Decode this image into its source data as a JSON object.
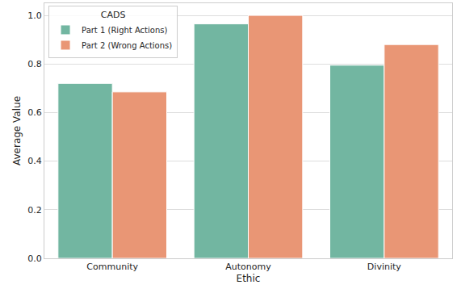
{
  "chart_data": {
    "type": "bar",
    "x_label": "Ethic",
    "y_label": "Average Value",
    "legend_title": "CADS",
    "categories": [
      "Community",
      "Autonomy",
      "Divinity"
    ],
    "series": [
      {
        "name": "Part 1 (Right Actions)",
        "color": "#72b6a1",
        "values": [
          0.72,
          0.965,
          0.795
        ]
      },
      {
        "name": "Part 2 (Wrong Actions)",
        "color": "#e99675",
        "values": [
          0.685,
          1.0,
          0.88
        ]
      }
    ],
    "ylim": [
      0,
      1.05
    ],
    "yticks": [
      {
        "value": 0,
        "label": "0.0"
      },
      0.2,
      0.4,
      0.6,
      0.8,
      {
        "value": 1,
        "label": "1.0"
      }
    ],
    "grid": true,
    "legend": "upper left"
  }
}
